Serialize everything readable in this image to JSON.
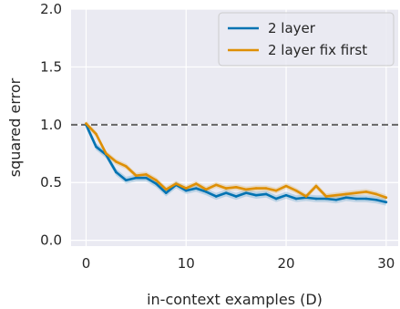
{
  "chart_data": {
    "type": "line",
    "title": "",
    "xlabel": "in-context examples (D)",
    "ylabel": "squared error",
    "xlim": [
      -1.5,
      31.2
    ],
    "ylim": [
      -0.05,
      2.0
    ],
    "xticks": [
      0,
      10,
      20,
      30
    ],
    "yticks": [
      0.0,
      0.5,
      1.0,
      1.5,
      2.0
    ],
    "xtick_labels": [
      "0",
      "10",
      "20",
      "30"
    ],
    "ytick_labels": [
      "0.0",
      "0.5",
      "1.0",
      "1.5",
      "2.0"
    ],
    "grid": true,
    "legend_position": "top-right",
    "x": [
      0,
      1,
      2,
      3,
      4,
      5,
      6,
      7,
      8,
      9,
      10,
      11,
      12,
      13,
      14,
      15,
      16,
      17,
      18,
      19,
      20,
      21,
      22,
      23,
      24,
      25,
      26,
      27,
      28,
      29,
      30
    ],
    "series": [
      {
        "name": "2 layer",
        "color": "#0173b2",
        "values": [
          1.0,
          0.81,
          0.74,
          0.59,
          0.52,
          0.54,
          0.54,
          0.49,
          0.41,
          0.48,
          0.43,
          0.45,
          0.42,
          0.38,
          0.41,
          0.38,
          0.41,
          0.39,
          0.4,
          0.36,
          0.39,
          0.36,
          0.37,
          0.36,
          0.36,
          0.35,
          0.37,
          0.36,
          0.36,
          0.35,
          0.33
        ],
        "band": 0.03
      },
      {
        "name": "2 layer fix first",
        "color": "#de8f05",
        "values": [
          1.01,
          0.92,
          0.75,
          0.68,
          0.64,
          0.56,
          0.57,
          0.52,
          0.44,
          0.49,
          0.45,
          0.49,
          0.44,
          0.48,
          0.45,
          0.46,
          0.44,
          0.45,
          0.45,
          0.43,
          0.47,
          0.43,
          0.38,
          0.47,
          0.38,
          0.39,
          0.4,
          0.41,
          0.42,
          0.4,
          0.37
        ],
        "band": 0.025
      }
    ],
    "reference_line": {
      "y": 1.0,
      "style": "dashed",
      "color": "#666666"
    },
    "background": "#eaeaf2",
    "grid_color": "#ffffff"
  }
}
